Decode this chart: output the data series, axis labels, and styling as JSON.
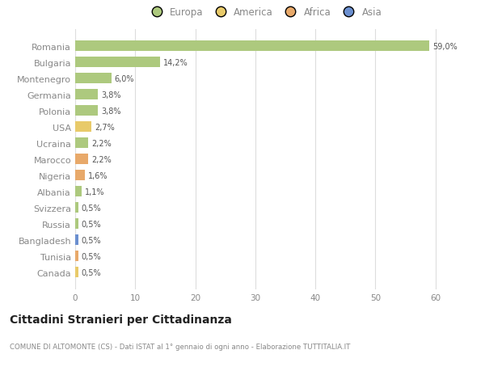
{
  "countries": [
    "Canada",
    "Tunisia",
    "Bangladesh",
    "Russia",
    "Svizzera",
    "Albania",
    "Nigeria",
    "Marocco",
    "Ucraina",
    "USA",
    "Polonia",
    "Germania",
    "Montenegro",
    "Bulgaria",
    "Romania"
  ],
  "values": [
    0.5,
    0.5,
    0.5,
    0.5,
    0.5,
    1.1,
    1.6,
    2.2,
    2.2,
    2.7,
    3.8,
    3.8,
    6.0,
    14.2,
    59.0
  ],
  "labels": [
    "0,5%",
    "0,5%",
    "0,5%",
    "0,5%",
    "0,5%",
    "1,1%",
    "1,6%",
    "2,2%",
    "2,2%",
    "2,7%",
    "3,8%",
    "3,8%",
    "6,0%",
    "14,2%",
    "59,0%"
  ],
  "continents": [
    "America",
    "Africa",
    "Asia",
    "Europa",
    "Europa",
    "Europa",
    "Africa",
    "Africa",
    "Europa",
    "America",
    "Europa",
    "Europa",
    "Europa",
    "Europa",
    "Europa"
  ],
  "continent_colors": {
    "Europa": "#adc97e",
    "America": "#e8ca6a",
    "Africa": "#e8a96a",
    "Asia": "#6b8fcf"
  },
  "legend_labels": [
    "Europa",
    "America",
    "Africa",
    "Asia"
  ],
  "legend_colors": [
    "#adc97e",
    "#e8ca6a",
    "#e8a96a",
    "#6b8fcf"
  ],
  "xlim": [
    0,
    63
  ],
  "xticks": [
    0,
    10,
    20,
    30,
    40,
    50,
    60
  ],
  "title": "Cittadini Stranieri per Cittadinanza",
  "subtitle": "COMUNE DI ALTOMONTE (CS) - Dati ISTAT al 1° gennaio di ogni anno - Elaborazione TUTTITALIA.IT",
  "bg_color": "#ffffff",
  "grid_color": "#dddddd",
  "text_color": "#888888",
  "label_color": "#555555",
  "bar_height": 0.65
}
